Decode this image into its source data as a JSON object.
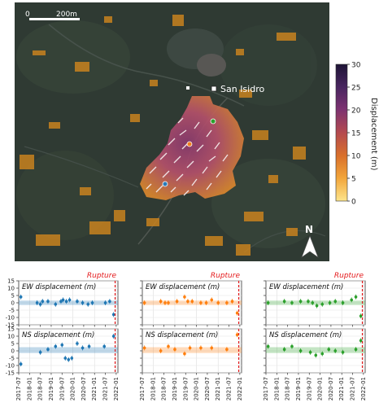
{
  "map": {
    "scale_bar_start": "0",
    "scale_bar_end": "200m",
    "place_label": "San Isidro",
    "north_label": "N",
    "colorbar": {
      "label": "Displacement (m)",
      "ticks": [
        "0",
        "5",
        "10",
        "15",
        "20",
        "25",
        "30"
      ],
      "range": [
        0,
        30
      ],
      "colors": [
        "#fde58c",
        "#f2a53a",
        "#d9702b",
        "#b44a4f",
        "#7d3271",
        "#4a2660",
        "#1e1436"
      ]
    },
    "point_colors": {
      "blue": "#2b7bb9",
      "orange": "#f07f1e",
      "green": "#2ca02c"
    }
  },
  "chart_data": [
    {
      "type": "scatter",
      "title": "EW displacement (m)",
      "rupture_label": "Rupture",
      "color": "#1f77b4",
      "ylim": [
        -15,
        15
      ],
      "yticks": [
        "15",
        "10",
        "5",
        "0",
        "-5",
        "-10",
        "-15"
      ],
      "band": [
        -1.5,
        1.5
      ],
      "points": [
        [
          2017.6,
          4
        ],
        [
          2018.35,
          0
        ],
        [
          2018.5,
          -1
        ],
        [
          2018.6,
          1
        ],
        [
          2018.85,
          1
        ],
        [
          2019.2,
          -1
        ],
        [
          2019.45,
          1
        ],
        [
          2019.55,
          2
        ],
        [
          2019.7,
          1
        ],
        [
          2019.85,
          2
        ],
        [
          2020.2,
          1
        ],
        [
          2020.45,
          0
        ],
        [
          2020.7,
          -1
        ],
        [
          2020.9,
          0
        ],
        [
          2021.5,
          0
        ],
        [
          2021.7,
          1
        ],
        [
          2021.88,
          -8
        ]
      ],
      "rupture_x": 2021.95
    },
    {
      "type": "scatter",
      "title": "EW displacement (m)",
      "rupture_label": "Rupture",
      "color": "#ff7f0e",
      "ylim": [
        -15,
        15
      ],
      "yticks": [
        "15",
        "10",
        "5",
        "0",
        "-5",
        "-10",
        "-15"
      ],
      "band": [
        -1.5,
        1.5
      ],
      "points": [
        [
          2017.6,
          0
        ],
        [
          2018.35,
          1
        ],
        [
          2018.55,
          0
        ],
        [
          2018.7,
          0
        ],
        [
          2019.1,
          1
        ],
        [
          2019.45,
          4
        ],
        [
          2019.6,
          1
        ],
        [
          2019.8,
          1
        ],
        [
          2020.2,
          0
        ],
        [
          2020.45,
          0
        ],
        [
          2020.7,
          2
        ],
        [
          2021.0,
          0
        ],
        [
          2021.4,
          0
        ],
        [
          2021.65,
          1
        ],
        [
          2021.88,
          -7
        ]
      ],
      "rupture_x": 2021.95
    },
    {
      "type": "scatter",
      "title": "EW displacement (m)",
      "rupture_label": "Rupture",
      "color": "#2ca02c",
      "ylim": [
        -15,
        15
      ],
      "yticks": [
        "15",
        "10",
        "5",
        "0",
        "-5",
        "-10",
        "-15"
      ],
      "band": [
        -1.5,
        1.5
      ],
      "points": [
        [
          2017.6,
          0
        ],
        [
          2018.35,
          1
        ],
        [
          2018.7,
          0
        ],
        [
          2019.1,
          1
        ],
        [
          2019.45,
          1
        ],
        [
          2019.65,
          0
        ],
        [
          2019.85,
          -2
        ],
        [
          2020.1,
          -1
        ],
        [
          2020.45,
          0
        ],
        [
          2020.7,
          1
        ],
        [
          2021.05,
          0
        ],
        [
          2021.45,
          2
        ],
        [
          2021.65,
          4
        ],
        [
          2021.88,
          -9
        ]
      ],
      "rupture_x": 2021.95
    },
    {
      "type": "scatter",
      "title": "NS displacement (m)",
      "color": "#1f77b4",
      "ylim": [
        -15,
        15
      ],
      "yticks": [
        "15",
        "10",
        "5",
        "0",
        "-5",
        "-10",
        "-15"
      ],
      "band": [
        -1.5,
        2.5
      ],
      "points": [
        [
          2017.6,
          -9
        ],
        [
          2018.5,
          -1
        ],
        [
          2018.85,
          1
        ],
        [
          2019.2,
          3
        ],
        [
          2019.5,
          4
        ],
        [
          2019.65,
          -5
        ],
        [
          2019.8,
          -6
        ],
        [
          2019.95,
          -5
        ],
        [
          2020.2,
          5
        ],
        [
          2020.45,
          2
        ],
        [
          2020.75,
          3
        ],
        [
          2021.45,
          3
        ],
        [
          2021.88,
          10
        ]
      ],
      "rupture_x": 2021.95,
      "x_ticks": [
        "2017-07",
        "2018-01",
        "2018-07",
        "2019-01",
        "2019-07",
        "2020-01",
        "2020-07",
        "2021-01",
        "2021-07",
        "2022-01"
      ]
    },
    {
      "type": "scatter",
      "title": "NS displacement (m)",
      "color": "#ff7f0e",
      "ylim": [
        -15,
        15
      ],
      "yticks": [
        "15",
        "10",
        "5",
        "0",
        "-5",
        "-10",
        "-15"
      ],
      "band": [
        -1.5,
        2.5
      ],
      "points": [
        [
          2017.6,
          2
        ],
        [
          2018.35,
          0
        ],
        [
          2018.7,
          3
        ],
        [
          2019.0,
          1
        ],
        [
          2019.45,
          -2
        ],
        [
          2019.7,
          2
        ],
        [
          2020.2,
          2
        ],
        [
          2020.7,
          2
        ],
        [
          2021.4,
          1
        ],
        [
          2021.88,
          11
        ]
      ],
      "rupture_x": 2021.95,
      "x_ticks": [
        "2017-07",
        "2018-01",
        "2018-07",
        "2019-01",
        "2019-07",
        "2020-01",
        "2020-07",
        "2021-01",
        "2021-07",
        "2022-01"
      ]
    },
    {
      "type": "scatter",
      "title": "NS displacement (m)",
      "color": "#2ca02c",
      "ylim": [
        -15,
        15
      ],
      "yticks": [
        "15",
        "10",
        "5",
        "0",
        "-5",
        "-10",
        "-15"
      ],
      "band": [
        -1.5,
        2.5
      ],
      "points": [
        [
          2017.6,
          3
        ],
        [
          2018.35,
          1
        ],
        [
          2018.7,
          3
        ],
        [
          2019.1,
          0
        ],
        [
          2019.55,
          -1
        ],
        [
          2019.8,
          -3
        ],
        [
          2020.1,
          -2
        ],
        [
          2020.4,
          1
        ],
        [
          2020.7,
          0
        ],
        [
          2021.05,
          -1
        ],
        [
          2021.65,
          1
        ],
        [
          2021.88,
          7
        ]
      ],
      "rupture_x": 2021.95,
      "x_ticks": [
        "2017-07",
        "2018-01",
        "2018-07",
        "2019-01",
        "2019-07",
        "2020-01",
        "2020-07",
        "2021-01",
        "2021-07",
        "2022-01"
      ]
    }
  ]
}
